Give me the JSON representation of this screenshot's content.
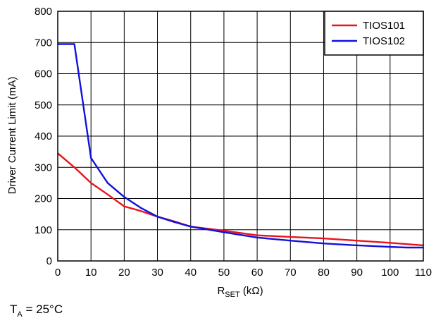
{
  "chart_data": {
    "type": "line",
    "xlabel_main": "R",
    "xlabel_sub": "SET",
    "xlabel_unit": " (kΩ)",
    "ylabel": "Driver Current Limit (mA)",
    "xlim": [
      0,
      110
    ],
    "ylim": [
      0,
      800
    ],
    "xticks": [
      0,
      10,
      20,
      30,
      40,
      50,
      60,
      70,
      80,
      90,
      100,
      110
    ],
    "yticks": [
      0,
      100,
      200,
      300,
      400,
      500,
      600,
      700,
      800
    ],
    "grid": true,
    "legend_position": "top-right",
    "series": [
      {
        "name": "TIOS101",
        "color": "#e8141c",
        "x": [
          0,
          5,
          10,
          15,
          20,
          25,
          30,
          35,
          40,
          50,
          60,
          70,
          80,
          90,
          100,
          110
        ],
        "y": [
          345,
          300,
          250,
          213,
          175,
          160,
          142,
          127,
          110,
          97,
          82,
          77,
          72,
          65,
          58,
          50
        ]
      },
      {
        "name": "TIOS102",
        "color": "#1111dd",
        "x": [
          0,
          1,
          5,
          10,
          15,
          20,
          25,
          30,
          35,
          40,
          50,
          60,
          70,
          80,
          90,
          100,
          105,
          110
        ],
        "y": [
          695,
          695,
          695,
          330,
          250,
          205,
          170,
          142,
          125,
          110,
          92,
          75,
          65,
          56,
          50,
          45,
          43,
          43
        ]
      }
    ]
  },
  "footnote": {
    "main": "T",
    "sub": "A",
    "rest": " = 25°C"
  }
}
